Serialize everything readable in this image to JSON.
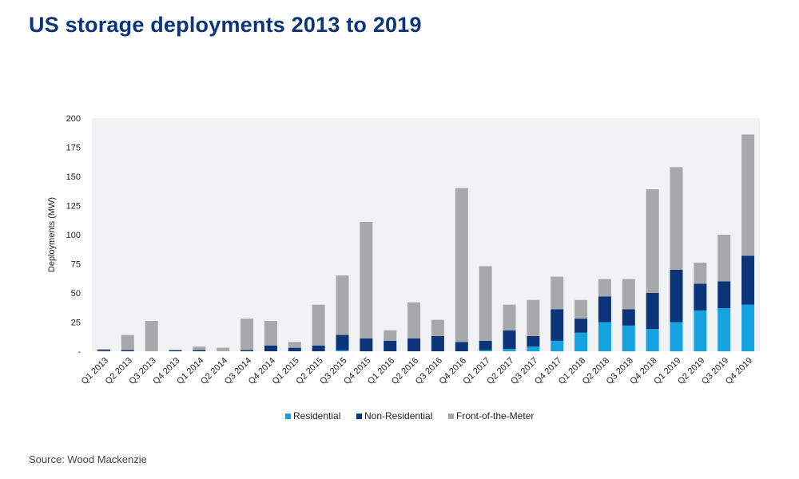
{
  "title": "US storage deployments 2013 to 2019",
  "source": "Source: Wood Mackenzie",
  "chart_data": {
    "type": "bar",
    "stacked": true,
    "ylabel": "Deployments (MW)",
    "xlabel": "",
    "ylim": [
      0,
      200
    ],
    "yticks": [
      0,
      25,
      50,
      75,
      100,
      125,
      150,
      175,
      200
    ],
    "ytick_labels": [
      "-",
      "25",
      "50",
      "75",
      "100",
      "125",
      "150",
      "175",
      "200"
    ],
    "legend_position": "bottom",
    "categories": [
      "Q1 2013",
      "Q2 2013",
      "Q3 2013",
      "Q4 2013",
      "Q1 2014",
      "Q2 2014",
      "Q3 2014",
      "Q4 2014",
      "Q1 2015",
      "Q2 2015",
      "Q3 2015",
      "Q4 2015",
      "Q1 2016",
      "Q2 2016",
      "Q3 2016",
      "Q4 2016",
      "Q1 2017",
      "Q2 2017",
      "Q3 2017",
      "Q4 2017",
      "Q1 2018",
      "Q2 2018",
      "Q3 2018",
      "Q4 2018",
      "Q1 2019",
      "Q2 2019",
      "Q3 2019",
      "Q4 2019"
    ],
    "series": [
      {
        "name": "Residential",
        "color": "#14a3e0",
        "values": [
          0,
          0,
          0,
          0,
          0,
          0,
          0,
          0,
          0,
          0,
          1,
          0,
          0,
          0,
          0,
          0,
          1,
          2,
          4,
          9,
          16,
          25,
          22,
          19,
          25,
          35,
          37,
          40
        ]
      },
      {
        "name": "Non-Residential",
        "color": "#0b3578",
        "values": [
          1,
          1,
          0,
          1,
          1,
          0,
          1,
          5,
          3,
          5,
          13,
          11,
          9,
          11,
          13,
          8,
          8,
          16,
          9,
          27,
          12,
          22,
          14,
          31,
          45,
          23,
          23,
          42
        ]
      },
      {
        "name": "Front-of-the-Meter",
        "color": "#a6a8ab",
        "values": [
          1,
          13,
          26,
          0,
          3,
          3,
          27,
          21,
          5,
          35,
          51,
          100,
          9,
          31,
          14,
          132,
          64,
          22,
          31,
          28,
          16,
          15,
          26,
          89,
          88,
          18,
          40,
          104
        ]
      }
    ]
  }
}
